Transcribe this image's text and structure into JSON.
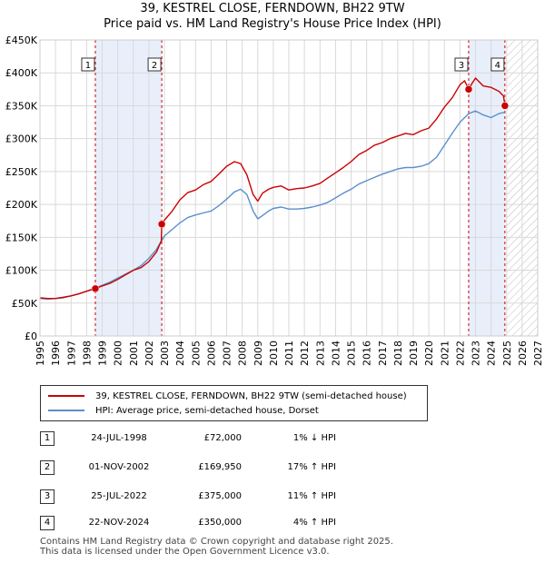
{
  "chart_data": {
    "type": "line",
    "title": "39, KESTREL CLOSE, FERNDOWN, BH22 9TW",
    "subtitle": "Price paid vs. HM Land Registry's House Price Index (HPI)",
    "xlabel": "",
    "ylabel": "",
    "xlim": [
      1995,
      2027
    ],
    "ylim": [
      0,
      450000
    ],
    "x_ticks": [
      "1995",
      "1996",
      "1997",
      "1998",
      "1999",
      "2000",
      "2001",
      "2002",
      "2003",
      "2004",
      "2005",
      "2006",
      "2007",
      "2008",
      "2009",
      "2010",
      "2011",
      "2012",
      "2013",
      "2014",
      "2015",
      "2016",
      "2017",
      "2018",
      "2019",
      "2020",
      "2021",
      "2022",
      "2023",
      "2024",
      "2025",
      "2026",
      "2027"
    ],
    "y_ticks": [
      {
        "value": 0,
        "label": "£0"
      },
      {
        "value": 50000,
        "label": "£50K"
      },
      {
        "value": 100000,
        "label": "£100K"
      },
      {
        "value": 150000,
        "label": "£150K"
      },
      {
        "value": 200000,
        "label": "£200K"
      },
      {
        "value": 250000,
        "label": "£250K"
      },
      {
        "value": 300000,
        "label": "£300K"
      },
      {
        "value": 350000,
        "label": "£350K"
      },
      {
        "value": 400000,
        "label": "£400K"
      },
      {
        "value": 450000,
        "label": "£450K"
      }
    ],
    "grid": true,
    "shaded_ranges": [
      [
        1998.56,
        2002.83
      ],
      [
        2022.56,
        2024.89
      ]
    ],
    "future_hatch_from": 2025.0,
    "series": [
      {
        "name": "39, KESTREL CLOSE, FERNDOWN, BH22 9TW (semi-detached house)",
        "color": "#cc0000",
        "x": [
          1995.0,
          1995.5,
          1996.0,
          1996.5,
          1997.0,
          1997.5,
          1998.0,
          1998.56,
          1999.0,
          1999.5,
          2000.0,
          2000.5,
          2001.0,
          2001.5,
          2002.0,
          2002.5,
          2002.8,
          2002.83,
          2003.0,
          2003.5,
          2004.0,
          2004.5,
          2005.0,
          2005.5,
          2006.0,
          2006.5,
          2007.0,
          2007.5,
          2007.9,
          2008.3,
          2008.7,
          2009.0,
          2009.3,
          2009.7,
          2010.0,
          2010.5,
          2011.0,
          2011.5,
          2012.0,
          2012.5,
          2013.0,
          2013.5,
          2014.0,
          2014.5,
          2015.0,
          2015.5,
          2016.0,
          2016.5,
          2017.0,
          2017.5,
          2018.0,
          2018.5,
          2019.0,
          2019.5,
          2020.0,
          2020.5,
          2021.0,
          2021.5,
          2022.0,
          2022.3,
          2022.56,
          2022.8,
          2023.0,
          2023.5,
          2024.0,
          2024.5,
          2024.8,
          2024.89
        ],
        "y": [
          58000,
          57000,
          57000,
          59000,
          61000,
          64000,
          68000,
          72000,
          76000,
          80000,
          86000,
          93000,
          100000,
          104000,
          113000,
          128000,
          145000,
          169950,
          176000,
          190000,
          207000,
          218000,
          222000,
          230000,
          235000,
          246000,
          258000,
          265000,
          262000,
          245000,
          215000,
          205000,
          217000,
          223000,
          226000,
          228000,
          222000,
          224000,
          225000,
          228000,
          232000,
          240000,
          248000,
          256000,
          265000,
          276000,
          282000,
          290000,
          294000,
          300000,
          304000,
          308000,
          306000,
          312000,
          316000,
          330000,
          348000,
          362000,
          382000,
          388000,
          375000,
          385000,
          392000,
          380000,
          378000,
          372000,
          365000,
          350000
        ]
      },
      {
        "name": "HPI: Average price, semi-detached house, Dorset",
        "color": "#5b8fcc",
        "x": [
          1995.0,
          1995.5,
          1996.0,
          1996.5,
          1997.0,
          1997.5,
          1998.0,
          1998.56,
          1999.0,
          1999.5,
          2000.0,
          2000.5,
          2001.0,
          2001.5,
          2002.0,
          2002.5,
          2002.83,
          2003.0,
          2003.5,
          2004.0,
          2004.5,
          2005.0,
          2005.5,
          2006.0,
          2006.5,
          2007.0,
          2007.5,
          2007.9,
          2008.3,
          2008.7,
          2009.0,
          2009.3,
          2009.7,
          2010.0,
          2010.5,
          2011.0,
          2011.5,
          2012.0,
          2012.5,
          2013.0,
          2013.5,
          2014.0,
          2014.5,
          2015.0,
          2015.5,
          2016.0,
          2016.5,
          2017.0,
          2017.5,
          2018.0,
          2018.5,
          2019.0,
          2019.5,
          2020.0,
          2020.5,
          2021.0,
          2021.5,
          2022.0,
          2022.56,
          2023.0,
          2023.5,
          2024.0,
          2024.5,
          2024.89
        ],
        "y": [
          57000,
          56000,
          57000,
          58000,
          61000,
          64000,
          68000,
          73000,
          77000,
          82000,
          88000,
          94000,
          100000,
          107000,
          118000,
          132000,
          145000,
          152000,
          162000,
          172000,
          180000,
          184000,
          187000,
          190000,
          198000,
          208000,
          219000,
          223000,
          215000,
          190000,
          178000,
          183000,
          190000,
          194000,
          196000,
          193000,
          193000,
          194000,
          196000,
          199000,
          203000,
          210000,
          217000,
          223000,
          231000,
          236000,
          241000,
          246000,
          250000,
          254000,
          256000,
          256000,
          258000,
          262000,
          272000,
          290000,
          308000,
          325000,
          338000,
          342000,
          336000,
          332000,
          338000,
          340000
        ]
      }
    ],
    "sale_markers": [
      {
        "num": "1",
        "x": 1998.56,
        "y": 72000
      },
      {
        "num": "2",
        "x": 2002.83,
        "y": 169950
      },
      {
        "num": "3",
        "x": 2022.56,
        "y": 375000
      },
      {
        "num": "4",
        "x": 2024.89,
        "y": 350000
      }
    ]
  },
  "legend": {
    "property_label": "39, KESTREL CLOSE, FERNDOWN, BH22 9TW (semi-detached house)",
    "hpi_label": "HPI: Average price, semi-detached house, Dorset",
    "property_color": "#cc0000",
    "hpi_color": "#5b8fcc"
  },
  "sales": [
    {
      "num": "1",
      "date": "24-JUL-1998",
      "price": "£72,000",
      "hpi": "1% ↓ HPI"
    },
    {
      "num": "2",
      "date": "01-NOV-2002",
      "price": "£169,950",
      "hpi": "17% ↑ HPI"
    },
    {
      "num": "3",
      "date": "25-JUL-2022",
      "price": "£375,000",
      "hpi": "11% ↑ HPI"
    },
    {
      "num": "4",
      "date": "22-NOV-2024",
      "price": "£350,000",
      "hpi": "4% ↑ HPI"
    }
  ],
  "footer": {
    "line1": "Contains HM Land Registry data © Crown copyright and database right 2025.",
    "line2": "This data is licensed under the Open Government Licence v3.0."
  }
}
